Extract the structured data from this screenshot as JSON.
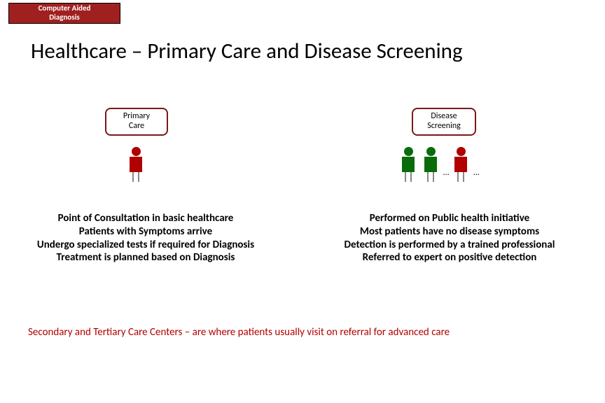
{
  "badge": {
    "line1": "Computer Aided",
    "line2": "Diagnosis",
    "bg": "#a02020",
    "fg": "#ffffff"
  },
  "title": "Healthcare – Primary Care and Disease Screening",
  "left_box": {
    "line1": "Primary",
    "line2": "Care",
    "border": "#7a1818"
  },
  "right_box": {
    "line1": "Disease",
    "line2": "Screening",
    "border": "#7a1818"
  },
  "left_figures": [
    {
      "color": "#b00000"
    }
  ],
  "right_figures": [
    {
      "color": "#0a6b0a"
    },
    {
      "color": "#0a6b0a"
    },
    {
      "color": "#b00000"
    }
  ],
  "ellipsis": "…",
  "desc_left": [
    "Point of Consultation in basic healthcare",
    "Patients with Symptoms arrive",
    "Undergo specialized tests if required for Diagnosis",
    "Treatment is planned based on Diagnosis"
  ],
  "desc_right": [
    "Performed on Public health initiative",
    "Most patients have no disease symptoms",
    "Detection is performed by a trained professional",
    "Referred to expert on positive detection"
  ],
  "footer": "Secondary and Tertiary Care Centers – are where patients usually visit on referral for advanced care",
  "colors": {
    "accent_red": "#b00000",
    "accent_green": "#0a6b0a",
    "text": "#000000",
    "bg": "#ffffff"
  }
}
